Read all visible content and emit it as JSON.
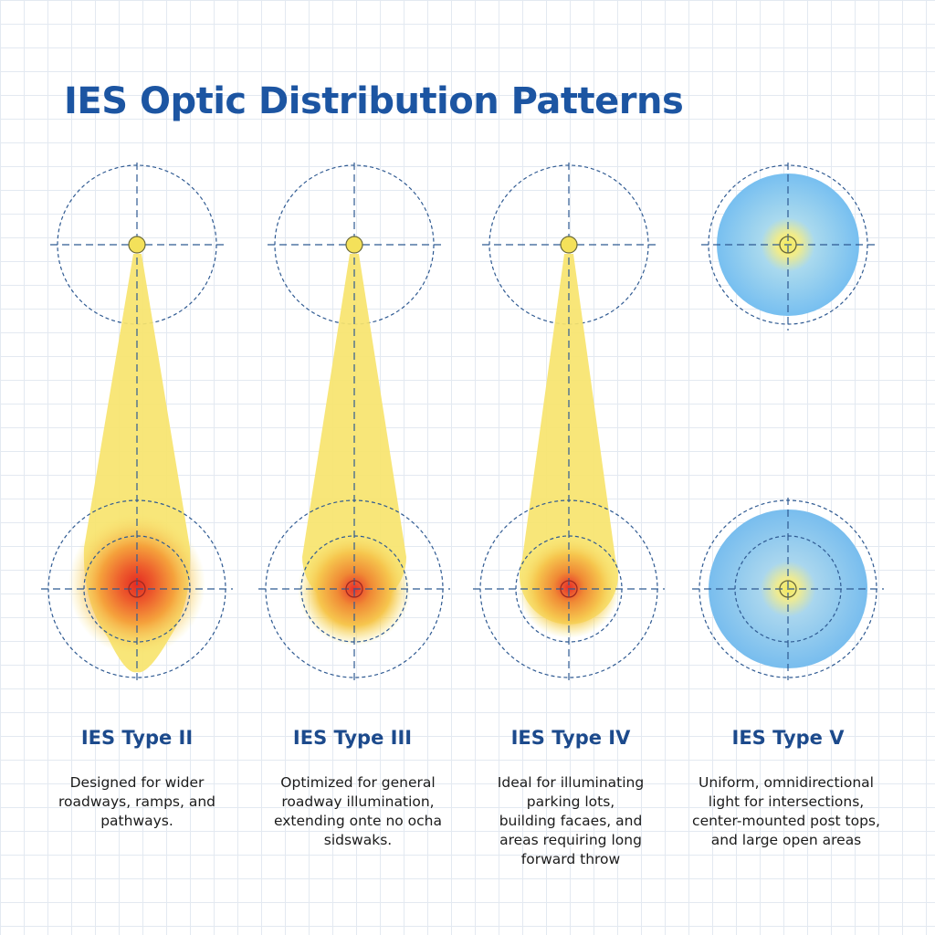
{
  "title": "IES Optic Distribution Patterns",
  "colors": {
    "title": "#1c55a2",
    "grid": "#e3e9f1",
    "guide": "#2f5a92",
    "beam": "#f7e46e",
    "hot_spot": "#e8302a",
    "type_v_fill": "#7fc3ee"
  },
  "patterns": [
    {
      "id": "type-ii",
      "label": "IES Type II",
      "description": [
        "Designed for wider",
        "roadways, ramps, and",
        "pathways."
      ]
    },
    {
      "id": "type-iii",
      "label": "IES Type III",
      "description": [
        "Optimized for general",
        "roadway illumination,",
        "extending onte no ocha",
        "sidswaks."
      ]
    },
    {
      "id": "type-iv",
      "label": "IES Type IV",
      "description": [
        "Ideal for illuminating",
        "parking lots,",
        "building facaes, and",
        "areas requiring long",
        "forward throw"
      ]
    },
    {
      "id": "type-v",
      "label": "IES Type V",
      "description": [
        "Uniform, omnidirectional",
        "light for intersections,",
        "center-mounted post tops,",
        "and large open areas"
      ]
    }
  ]
}
